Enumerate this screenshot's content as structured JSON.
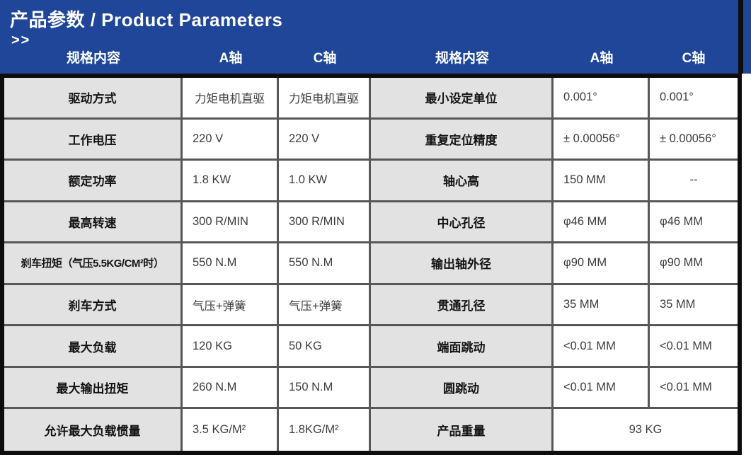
{
  "header": {
    "title": "产品参数 / Product Parameters",
    "chevrons": ">>",
    "columns": [
      "规格内容",
      "A轴",
      "C轴"
    ]
  },
  "colors": {
    "header_blue": "#1F4699",
    "label_gray": "#E2E2E2",
    "grid_gray": "#575757",
    "outer_border": "#0D0D0D"
  },
  "table": {
    "left": {
      "rows": [
        {
          "label": "驱动方式",
          "a": "力矩电机直驱",
          "c": "力矩电机直驱",
          "align": "center"
        },
        {
          "label": "工作电压",
          "a": "220 V",
          "c": "220 V"
        },
        {
          "label": "额定功率",
          "a": "1.8 KW",
          "c": "1.0 KW"
        },
        {
          "label": "最高转速",
          "a": "300 R/MIN",
          "c": "300 R/MIN"
        },
        {
          "label": "刹车扭矩（气压5.5KG/CM²时）",
          "a": "550 N.M",
          "c": "550 N.M"
        },
        {
          "label": "刹车方式",
          "a": "气压+弹簧",
          "c": "气压+弹簧"
        },
        {
          "label": "最大负载",
          "a": "120 KG",
          "c": "50 KG"
        },
        {
          "label": "最大输出扭矩",
          "a": "260 N.M",
          "c": "150 N.M"
        },
        {
          "label": "允许最大负载惯量",
          "a": "3.5 KG/M²",
          "c": "1.8KG/M²"
        }
      ]
    },
    "right": {
      "rows": [
        {
          "label": "最小设定单位",
          "a": "0.001°",
          "c": "0.001°"
        },
        {
          "label": "重复定位精度",
          "a": "± 0.00056°",
          "c": "± 0.00056°"
        },
        {
          "label": "轴心高",
          "a": "150 MM",
          "c": "--",
          "c_align": "center"
        },
        {
          "label": "中心孔径",
          "a": "φ46 MM",
          "c": "φ46 MM"
        },
        {
          "label": "输出轴外径",
          "a": "φ90 MM",
          "c": "φ90 MM"
        },
        {
          "label": "贯通孔径",
          "a": "35 MM",
          "c": "35 MM"
        },
        {
          "label": "端面跳动",
          "a": "<0.01 MM",
          "c": "<0.01 MM"
        },
        {
          "label": "圆跳动",
          "a": "<0.01 MM",
          "c": "<0.01 MM"
        },
        {
          "label": "产品重量",
          "span": "93 KG",
          "align": "center"
        }
      ]
    }
  }
}
